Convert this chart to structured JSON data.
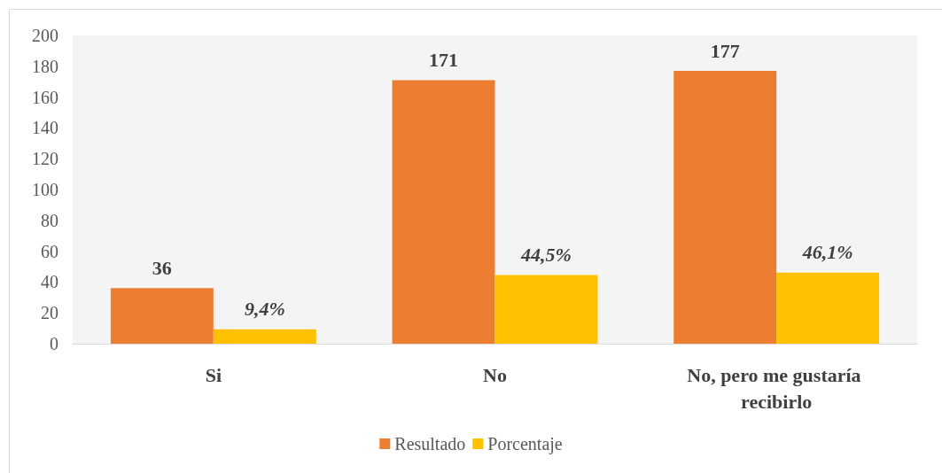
{
  "chart_data": {
    "type": "bar",
    "categories": [
      "Si",
      "No",
      "No, pero me gustaría recibirlo"
    ],
    "series": [
      {
        "name": "Resultado",
        "color": "#ed7d31",
        "values": [
          36,
          171,
          177
        ],
        "value_labels": [
          "36",
          "171",
          "177"
        ]
      },
      {
        "name": "Porcentaje",
        "color": "#ffc000",
        "values": [
          9.4,
          44.5,
          46.1
        ],
        "value_labels": [
          "9,4%",
          "44,5%",
          "46,1%"
        ]
      }
    ],
    "ylim": [
      0,
      200
    ],
    "yticks": [
      0,
      20,
      40,
      60,
      80,
      100,
      120,
      140,
      160,
      180,
      200
    ],
    "grid": false,
    "legend": "bottom"
  }
}
